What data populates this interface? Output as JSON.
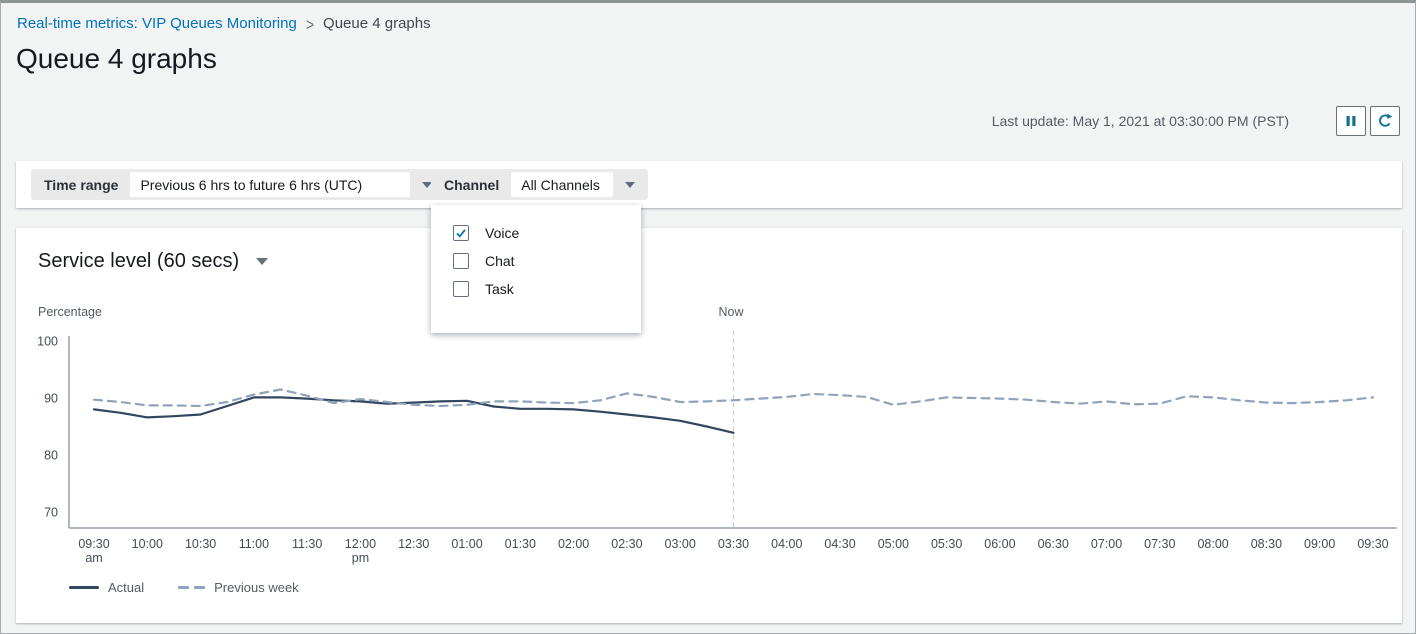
{
  "colors": {
    "link_blue": "#0073bb",
    "action_icon_teal": "#0f7390",
    "actual_line": "#32475f",
    "previous_week_line": "#8fa3ba",
    "axis": "#98a2a8",
    "now_line": "#c5cdd0",
    "check_blue": "#0073bb"
  },
  "breadcrumb": {
    "link": "Real-time metrics: VIP Queues Monitoring",
    "separator": ">",
    "current": "Queue 4 graphs"
  },
  "header": {
    "title": "Queue 4 graphs",
    "last_update": "Last update: May 1, 2021 at 03:30:00 PM (PST)",
    "actions": [
      {
        "icon": "pause-icon"
      },
      {
        "icon": "refresh-icon"
      }
    ]
  },
  "filters": {
    "time_range_label": "Time range",
    "time_range_value": "Previous 6 hrs to future 6 hrs (UTC)",
    "channel_label": "Channel",
    "channel_value": "All Channels",
    "channel_options": [
      {
        "label": "Voice",
        "checked": true
      },
      {
        "label": "Chat",
        "checked": false
      },
      {
        "label": "Task",
        "checked": false
      }
    ]
  },
  "chart": {
    "title": "Service level (60 secs)",
    "y_axis_title": "Percentage",
    "now_label": "Now"
  },
  "chart_data": {
    "type": "line",
    "title": "Service level (60 secs)",
    "ylabel": "Percentage",
    "y_ticks": [
      100,
      90,
      80,
      70
    ],
    "ylim": [
      67,
      102
    ],
    "grid": false,
    "legend_position": "bottom-left",
    "x_ticks": [
      {
        "label": "09:30",
        "sub": "am"
      },
      {
        "label": "10:00"
      },
      {
        "label": "10:30"
      },
      {
        "label": "11:00"
      },
      {
        "label": "11:30"
      },
      {
        "label": "12:00",
        "sub": "pm"
      },
      {
        "label": "12:30"
      },
      {
        "label": "01:00"
      },
      {
        "label": "01:30"
      },
      {
        "label": "02:00"
      },
      {
        "label": "02:30"
      },
      {
        "label": "03:00"
      },
      {
        "label": "03:30"
      },
      {
        "label": "04:00"
      },
      {
        "label": "04:30"
      },
      {
        "label": "05:00"
      },
      {
        "label": "05:30"
      },
      {
        "label": "06:00"
      },
      {
        "label": "06:30"
      },
      {
        "label": "07:00"
      },
      {
        "label": "07:30"
      },
      {
        "label": "08:00"
      },
      {
        "label": "08:30"
      },
      {
        "label": "09:00"
      },
      {
        "label": "09:30"
      }
    ],
    "point_interval_minutes": 15,
    "now_index": 12,
    "now_label": "Now",
    "series": [
      {
        "name": "Actual",
        "style": "solid",
        "color": "#32475f",
        "start": "09:30 am",
        "values": [
          88,
          87.4,
          86.6,
          86.8,
          87.1,
          88.6,
          90.1,
          90.1,
          89.9,
          89.6,
          89.4,
          89,
          89.2,
          89.4,
          89.5,
          88.5,
          88.1,
          88.1,
          88,
          87.6,
          87.1,
          86.6,
          86,
          85,
          83.9
        ]
      },
      {
        "name": "Previous week",
        "style": "dashed",
        "color": "#8fa3ba",
        "start": "09:30 am",
        "values": [
          89.7,
          89.3,
          88.7,
          88.7,
          88.6,
          89.3,
          90.6,
          91.5,
          90.4,
          89.1,
          89.8,
          89.3,
          88.8,
          88.6,
          88.8,
          89.4,
          89.4,
          89.2,
          89.1,
          89.6,
          90.8,
          90.2,
          89.3,
          89.4,
          89.6,
          89.9,
          90.2,
          90.7,
          90.5,
          90.2,
          88.8,
          89.4,
          90.1,
          90,
          89.9,
          89.7,
          89.3,
          89,
          89.4,
          88.9,
          89,
          90.3,
          90.1,
          89.6,
          89.2,
          89.1,
          89.3,
          89.6,
          90.1
        ]
      }
    ]
  }
}
